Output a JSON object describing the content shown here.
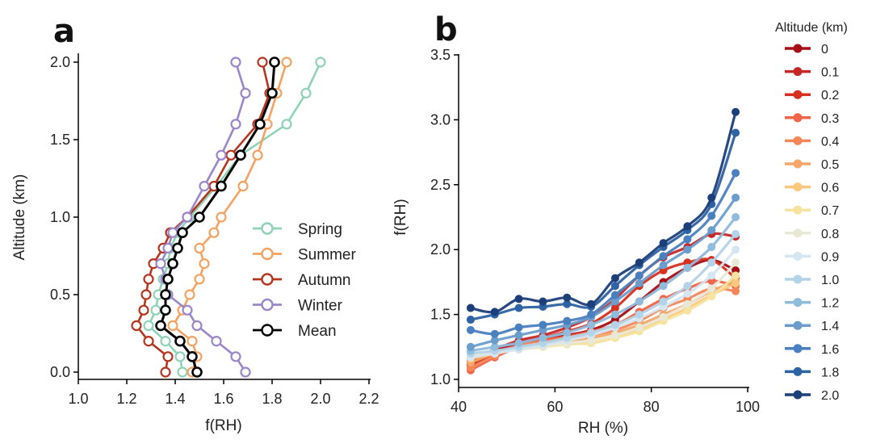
{
  "chart_data": [
    {
      "panel": "a",
      "type": "line",
      "xlabel": "f(RH)",
      "ylabel": "Altitude (km)",
      "xlim": [
        1.0,
        2.2
      ],
      "ylim": [
        0.0,
        2.0
      ],
      "xticks": [
        "1.0",
        "1.2",
        "1.4",
        "1.6",
        "1.8",
        "2.0",
        "2.2"
      ],
      "yticks": [
        "0.0",
        "0.5",
        "1.0",
        "1.5",
        "2.0"
      ],
      "legend_position": "right",
      "altitudes": [
        0.0,
        0.1,
        0.2,
        0.3,
        0.4,
        0.5,
        0.6,
        0.7,
        0.8,
        0.9,
        1.0,
        1.2,
        1.4,
        1.6,
        1.8,
        2.0
      ],
      "series": [
        {
          "name": "Spring",
          "color": "#8fd3b6",
          "values": [
            1.43,
            1.42,
            1.36,
            1.29,
            1.32,
            1.33,
            1.35,
            1.37,
            1.38,
            1.41,
            1.46,
            1.57,
            1.67,
            1.86,
            1.94,
            2.0
          ]
        },
        {
          "name": "Summer",
          "color": "#f4a261",
          "values": [
            1.47,
            1.49,
            1.47,
            1.39,
            1.43,
            1.46,
            1.5,
            1.52,
            1.5,
            1.56,
            1.59,
            1.68,
            1.74,
            1.78,
            1.82,
            1.86
          ]
        },
        {
          "name": "Autumn",
          "color": "#b5361f",
          "values": [
            1.36,
            1.37,
            1.29,
            1.24,
            1.27,
            1.28,
            1.29,
            1.31,
            1.35,
            1.38,
            1.45,
            1.56,
            1.63,
            1.74,
            1.79,
            1.76
          ]
        },
        {
          "name": "Winter",
          "color": "#9a86c9",
          "values": [
            1.69,
            1.65,
            1.57,
            1.49,
            1.45,
            1.37,
            1.36,
            1.34,
            1.37,
            1.39,
            1.45,
            1.52,
            1.59,
            1.65,
            1.69,
            1.65
          ]
        },
        {
          "name": "Mean",
          "color": "#000000",
          "values": [
            1.49,
            1.47,
            1.42,
            1.34,
            1.36,
            1.36,
            1.37,
            1.39,
            1.41,
            1.43,
            1.5,
            1.59,
            1.67,
            1.75,
            1.8,
            1.81
          ]
        }
      ]
    },
    {
      "panel": "b",
      "type": "line",
      "xlabel": "RH (%)",
      "ylabel": "f(RH)",
      "xlim": [
        40,
        100
      ],
      "ylim": [
        1.0,
        3.5
      ],
      "xticks": [
        "40",
        "60",
        "80",
        "100"
      ],
      "yticks": [
        "1.0",
        "1.5",
        "2.0",
        "2.5",
        "3.0",
        "3.5"
      ],
      "legend_title": "Altitude (km)",
      "legend_position": "right",
      "x": [
        42.5,
        47.5,
        52.5,
        57.5,
        62.5,
        67.5,
        72.5,
        77.5,
        82.5,
        87.5,
        92.5,
        97.5
      ],
      "series": [
        {
          "name": "0",
          "color": "#a50f15",
          "values": [
            1.12,
            1.22,
            1.28,
            1.31,
            1.34,
            1.38,
            1.46,
            1.6,
            1.75,
            1.86,
            1.92,
            1.84
          ]
        },
        {
          "name": "0.1",
          "color": "#c62828",
          "values": [
            1.14,
            1.23,
            1.3,
            1.34,
            1.4,
            1.48,
            1.62,
            1.8,
            1.94,
            2.02,
            2.12,
            2.1
          ]
        },
        {
          "name": "0.2",
          "color": "#d7301f",
          "values": [
            1.1,
            1.2,
            1.27,
            1.32,
            1.37,
            1.43,
            1.55,
            1.72,
            1.84,
            1.9,
            1.92,
            1.78
          ]
        },
        {
          "name": "0.3",
          "color": "#ef6548",
          "values": [
            1.07,
            1.17,
            1.25,
            1.3,
            1.33,
            1.37,
            1.42,
            1.52,
            1.62,
            1.7,
            1.76,
            1.72
          ]
        },
        {
          "name": "0.4",
          "color": "#f4865a",
          "values": [
            1.09,
            1.18,
            1.26,
            1.29,
            1.32,
            1.34,
            1.38,
            1.45,
            1.55,
            1.62,
            1.7,
            1.68
          ]
        },
        {
          "name": "0.5",
          "color": "#f5a66b",
          "values": [
            1.13,
            1.2,
            1.25,
            1.28,
            1.3,
            1.32,
            1.36,
            1.42,
            1.5,
            1.58,
            1.68,
            1.76
          ]
        },
        {
          "name": "0.6",
          "color": "#fbc97d",
          "values": [
            1.16,
            1.2,
            1.24,
            1.27,
            1.28,
            1.28,
            1.32,
            1.38,
            1.46,
            1.55,
            1.65,
            1.74
          ]
        },
        {
          "name": "0.7",
          "color": "#f6e3a0",
          "values": [
            1.18,
            1.21,
            1.23,
            1.25,
            1.27,
            1.28,
            1.32,
            1.37,
            1.45,
            1.53,
            1.64,
            1.8
          ]
        },
        {
          "name": "0.8",
          "color": "#e8e8d6",
          "values": [
            1.19,
            1.21,
            1.24,
            1.26,
            1.28,
            1.3,
            1.34,
            1.4,
            1.48,
            1.58,
            1.7,
            1.9
          ]
        },
        {
          "name": "0.9",
          "color": "#d4e6f1",
          "values": [
            1.17,
            1.2,
            1.23,
            1.26,
            1.3,
            1.34,
            1.4,
            1.47,
            1.56,
            1.66,
            1.8,
            2.0
          ]
        },
        {
          "name": "1.0",
          "color": "#b3d3e8",
          "values": [
            1.2,
            1.22,
            1.25,
            1.28,
            1.32,
            1.36,
            1.42,
            1.5,
            1.6,
            1.72,
            1.9,
            2.12
          ]
        },
        {
          "name": "1.2",
          "color": "#8fbbdc",
          "values": [
            1.22,
            1.25,
            1.28,
            1.32,
            1.36,
            1.42,
            1.5,
            1.6,
            1.72,
            1.86,
            2.02,
            2.25
          ]
        },
        {
          "name": "1.4",
          "color": "#6a9dcc",
          "values": [
            1.25,
            1.3,
            1.34,
            1.38,
            1.42,
            1.48,
            1.6,
            1.74,
            1.88,
            2.0,
            2.15,
            2.4
          ]
        },
        {
          "name": "1.6",
          "color": "#4a80bf",
          "values": [
            1.38,
            1.35,
            1.4,
            1.42,
            1.45,
            1.5,
            1.65,
            1.8,
            1.95,
            2.08,
            2.26,
            2.59
          ]
        },
        {
          "name": "1.8",
          "color": "#2d62a3",
          "values": [
            1.46,
            1.5,
            1.55,
            1.56,
            1.58,
            1.56,
            1.72,
            1.88,
            2.02,
            2.15,
            2.35,
            2.9
          ]
        },
        {
          "name": "2.0",
          "color": "#1c3f7a",
          "values": [
            1.55,
            1.52,
            1.62,
            1.6,
            1.63,
            1.58,
            1.78,
            1.9,
            2.05,
            2.18,
            2.4,
            3.06
          ]
        }
      ]
    }
  ]
}
